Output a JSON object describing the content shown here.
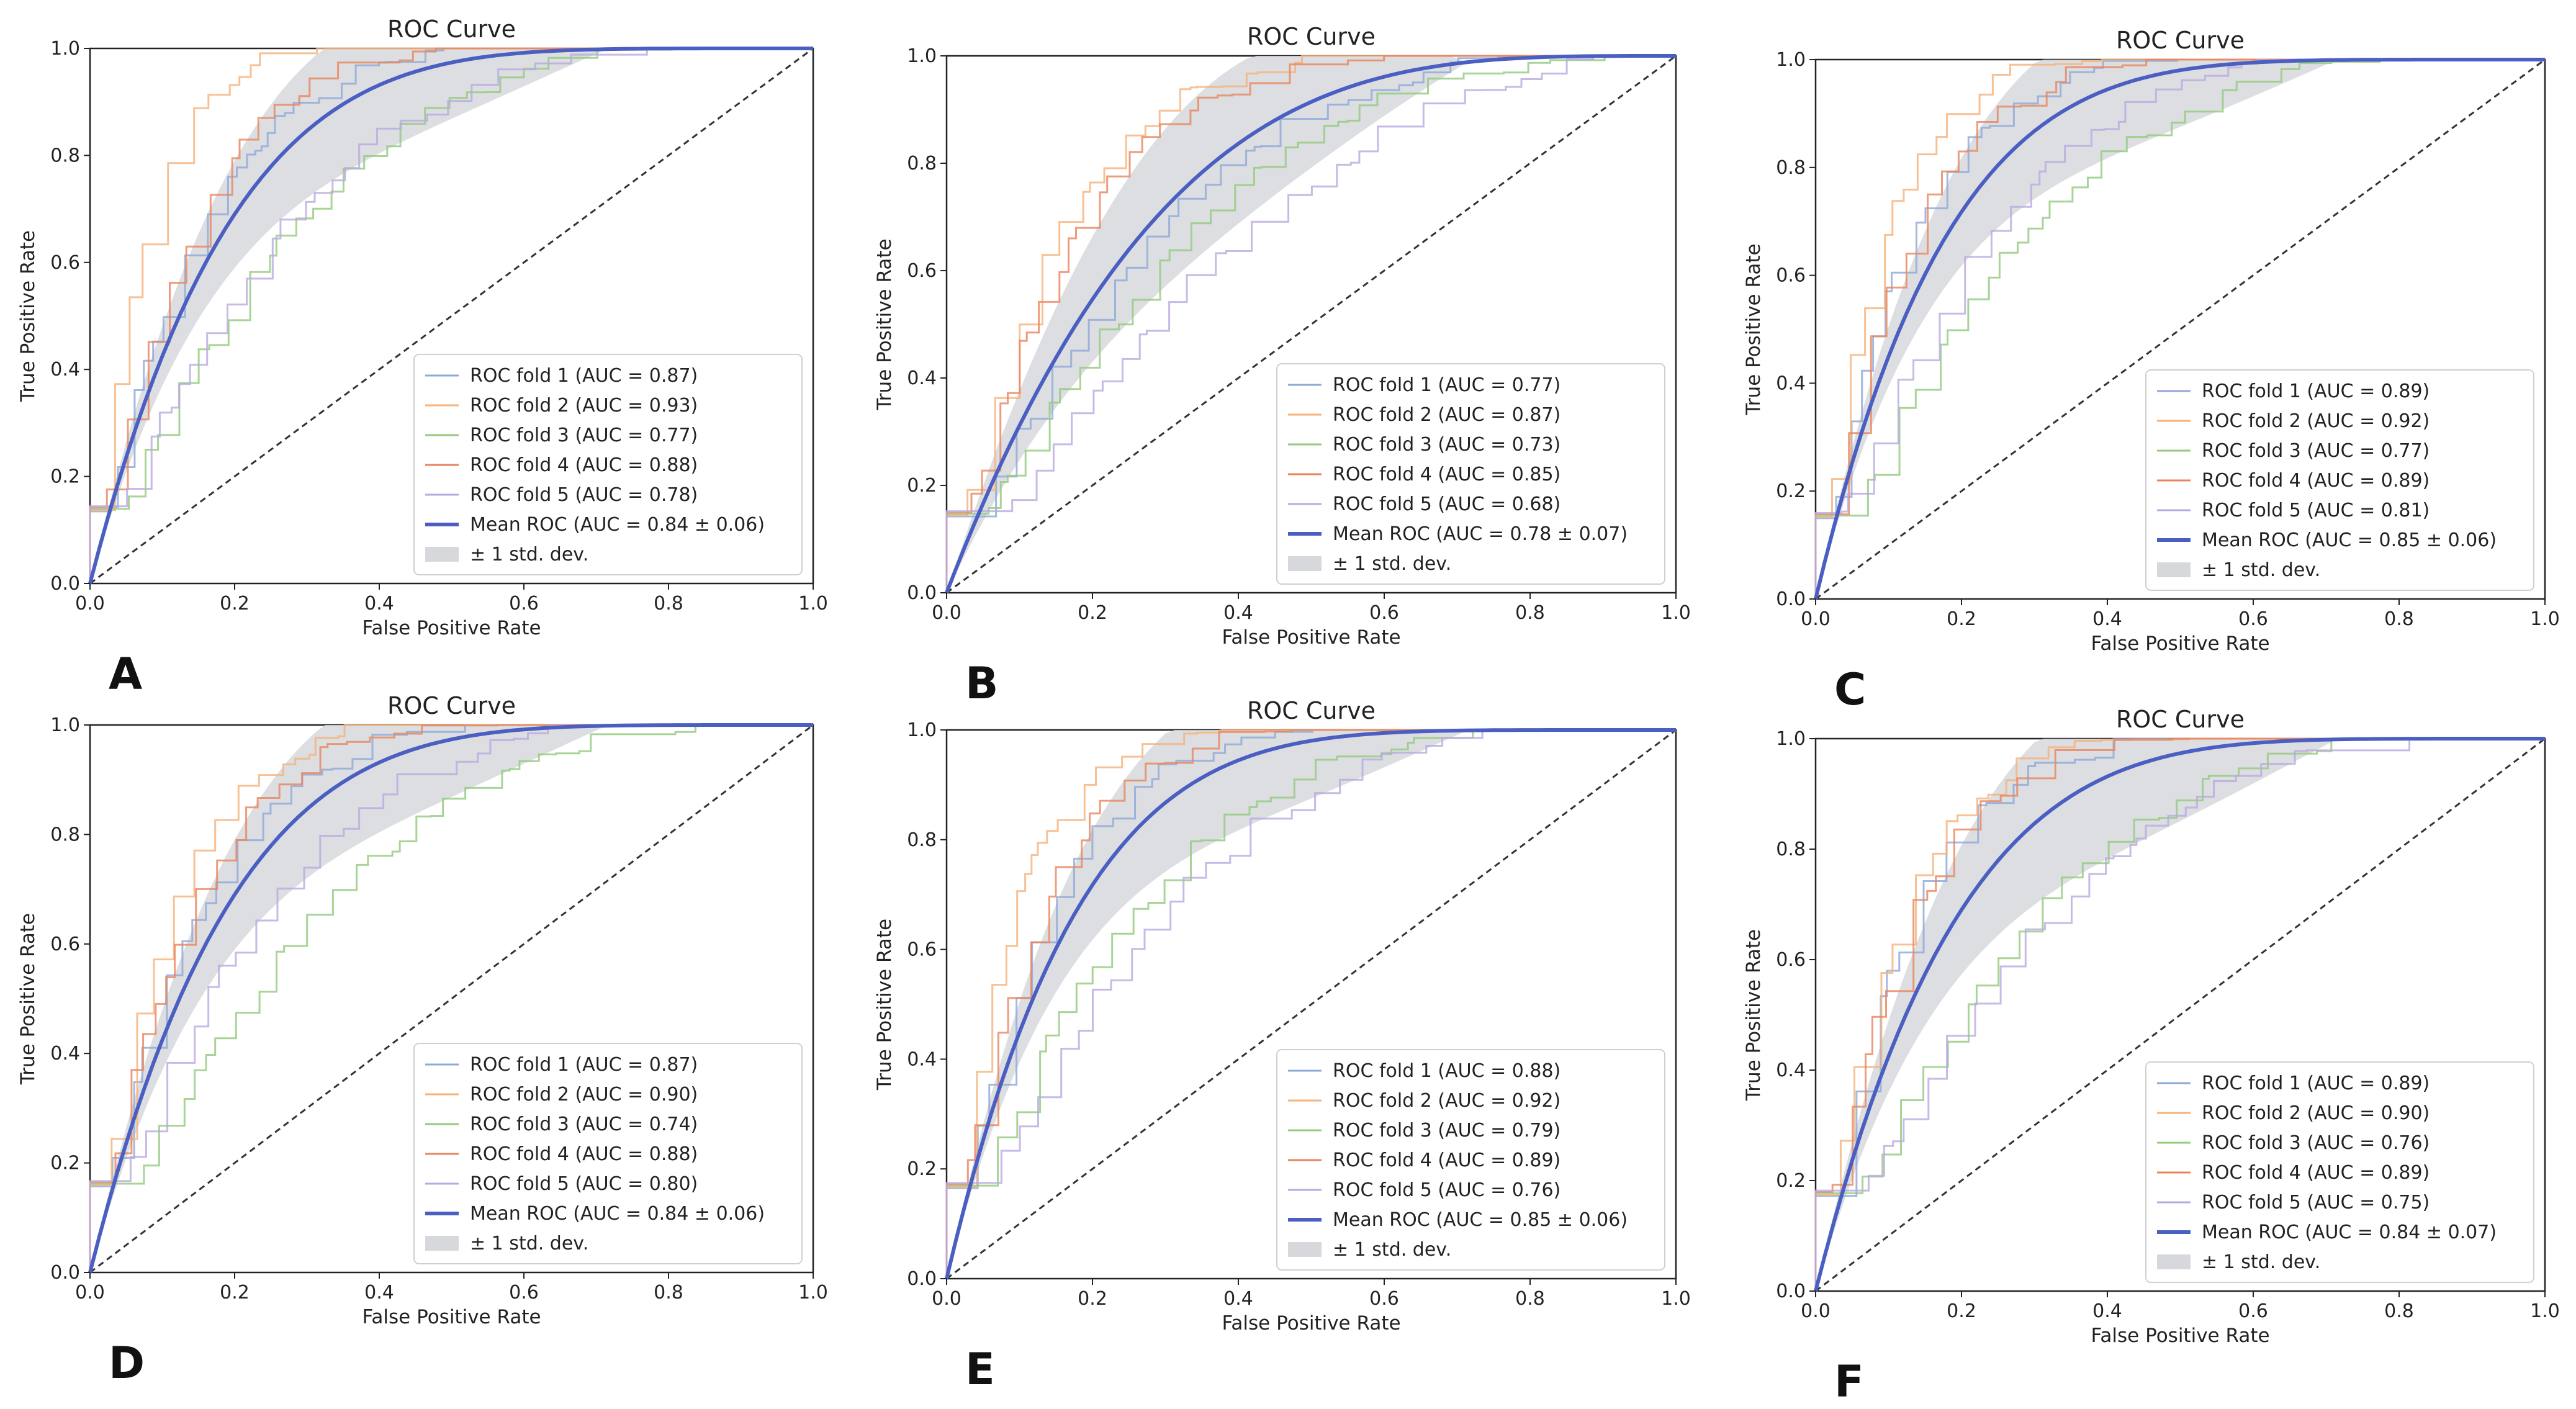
{
  "figure": {
    "title": "ROC Curve",
    "xlabel": "False Positive Rate",
    "ylabel": "True Positive Rate",
    "ticks": [
      "0.0",
      "0.2",
      "0.4",
      "0.6",
      "0.8",
      "1.0"
    ],
    "std_label": "± 1 std. dev.",
    "fold_colors": [
      "#8fa8d8",
      "#f5b27a",
      "#94c97e",
      "#e8845c",
      "#b9a9e0"
    ],
    "mean_color": "#4a5fc1",
    "std_band_color": "#d6d8dc",
    "chance_line_color": "#333333"
  },
  "chart_data": [
    {
      "panel_letter": "A",
      "type": "line",
      "title": "ROC Curve",
      "xlabel": "False Positive Rate",
      "ylabel": "True Positive Rate",
      "xlim": [
        0,
        1
      ],
      "ylim": [
        0,
        1
      ],
      "legend_position": "lower-right",
      "legend": [
        "ROC fold 1 (AUC = 0.87)",
        "ROC fold 2 (AUC = 0.93)",
        "ROC fold 3 (AUC = 0.77)",
        "ROC fold 4 (AUC = 0.88)",
        "ROC fold 5 (AUC = 0.78)",
        "Mean ROC (AUC = 0.84 ± 0.06)",
        "± 1 std. dev."
      ],
      "auc": [
        0.87,
        0.93,
        0.77,
        0.88,
        0.78
      ],
      "mean_auc": 0.84,
      "mean_auc_std": 0.06
    },
    {
      "panel_letter": "B",
      "type": "line",
      "title": "ROC Curve",
      "xlabel": "False Positive Rate",
      "ylabel": "True Positive Rate",
      "xlim": [
        0,
        1
      ],
      "ylim": [
        0,
        1
      ],
      "legend_position": "lower-right",
      "legend": [
        "ROC fold 1 (AUC = 0.77)",
        "ROC fold 2 (AUC = 0.87)",
        "ROC fold 3 (AUC = 0.73)",
        "ROC fold 4 (AUC = 0.85)",
        "ROC fold 5 (AUC = 0.68)",
        "Mean ROC (AUC = 0.78 ± 0.07)",
        "± 1 std. dev."
      ],
      "auc": [
        0.77,
        0.87,
        0.73,
        0.85,
        0.68
      ],
      "mean_auc": 0.78,
      "mean_auc_std": 0.07
    },
    {
      "panel_letter": "C",
      "type": "line",
      "title": "ROC Curve",
      "xlabel": "False Positive Rate",
      "ylabel": "True Positive Rate",
      "xlim": [
        0,
        1
      ],
      "ylim": [
        0,
        1
      ],
      "legend_position": "lower-right",
      "legend": [
        "ROC fold 1 (AUC = 0.89)",
        "ROC fold 2 (AUC = 0.92)",
        "ROC fold 3 (AUC = 0.77)",
        "ROC fold 4 (AUC = 0.89)",
        "ROC fold 5 (AUC = 0.81)",
        "Mean ROC (AUC = 0.85 ± 0.06)",
        "± 1 std. dev."
      ],
      "auc": [
        0.89,
        0.92,
        0.77,
        0.89,
        0.81
      ],
      "mean_auc": 0.85,
      "mean_auc_std": 0.06
    },
    {
      "panel_letter": "D",
      "type": "line",
      "title": "ROC Curve",
      "xlabel": "False Positive Rate",
      "ylabel": "True Positive Rate",
      "xlim": [
        0,
        1
      ],
      "ylim": [
        0,
        1
      ],
      "legend_position": "lower-right",
      "legend": [
        "ROC fold 1 (AUC = 0.87)",
        "ROC fold 2 (AUC = 0.90)",
        "ROC fold 3 (AUC = 0.74)",
        "ROC fold 4 (AUC = 0.88)",
        "ROC fold 5 (AUC = 0.80)",
        "Mean ROC (AUC = 0.84 ± 0.06)",
        "± 1 std. dev."
      ],
      "auc": [
        0.87,
        0.9,
        0.74,
        0.88,
        0.8
      ],
      "mean_auc": 0.84,
      "mean_auc_std": 0.06
    },
    {
      "panel_letter": "E",
      "type": "line",
      "title": "ROC Curve",
      "xlabel": "False Positive Rate",
      "ylabel": "True Positive Rate",
      "xlim": [
        0,
        1
      ],
      "ylim": [
        0,
        1
      ],
      "legend_position": "lower-right",
      "legend": [
        "ROC fold 1 (AUC = 0.88)",
        "ROC fold 2 (AUC = 0.92)",
        "ROC fold 3 (AUC = 0.79)",
        "ROC fold 4 (AUC = 0.89)",
        "ROC fold 5 (AUC = 0.76)",
        "Mean ROC (AUC = 0.85 ± 0.06)",
        "± 1 std. dev."
      ],
      "auc": [
        0.88,
        0.92,
        0.79,
        0.89,
        0.76
      ],
      "mean_auc": 0.85,
      "mean_auc_std": 0.06
    },
    {
      "panel_letter": "F",
      "type": "line",
      "title": "ROC Curve",
      "xlabel": "False Positive Rate",
      "ylabel": "True Positive Rate",
      "xlim": [
        0,
        1
      ],
      "ylim": [
        0,
        1
      ],
      "legend_position": "lower-right",
      "legend": [
        "ROC fold 1 (AUC = 0.89)",
        "ROC fold 2 (AUC = 0.90)",
        "ROC fold 3 (AUC = 0.76)",
        "ROC fold 4 (AUC = 0.89)",
        "ROC fold 5 (AUC = 0.75)",
        "Mean ROC (AUC = 0.84 ± 0.07)",
        "± 1 std. dev."
      ],
      "auc": [
        0.89,
        0.9,
        0.76,
        0.89,
        0.75
      ],
      "mean_auc": 0.84,
      "mean_auc_std": 0.07
    }
  ]
}
